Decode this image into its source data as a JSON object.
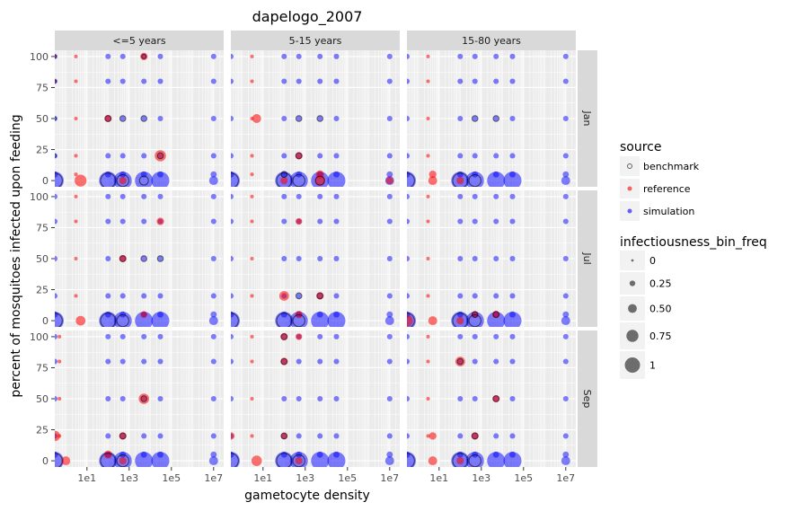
{
  "chart_data": {
    "type": "scatter",
    "title": "dapelogo_2007",
    "xlabel": "gametocyte density",
    "ylabel": "percent of mosquitoes infected upon feeding",
    "x_scale": "log10",
    "xlim": [
      0.3,
      30000000
    ],
    "ylim": [
      -5,
      105
    ],
    "x_ticks": [
      10,
      1000,
      100000,
      10000000
    ],
    "x_tick_labels": [
      "1e1",
      "1e3",
      "1e5",
      "1e7"
    ],
    "y_ticks": [
      0,
      25,
      50,
      75,
      100
    ],
    "y_tick_labels": [
      "0",
      "25",
      "50",
      "75",
      "100"
    ],
    "grid": true,
    "facet_columns": [
      "<=5 years",
      "5-15 years",
      "15-80 years"
    ],
    "facet_rows": [
      "Jan",
      "Jul",
      "Sep"
    ],
    "colors": {
      "benchmark": "#000000",
      "reference": "#ff0000",
      "simulation": "#0000ff"
    },
    "legend_color": {
      "title": "source",
      "entries": [
        "benchmark",
        "reference",
        "simulation"
      ]
    },
    "legend_size": {
      "title": "infectiousness_bin_freq",
      "entries": [
        "0",
        "0.25",
        "0.50",
        "0.75",
        "1"
      ],
      "values": [
        0,
        0.25,
        0.5,
        0.75,
        1
      ]
    },
    "simulation_x": [
      0.3,
      100,
      500,
      5000,
      30000,
      10000000
    ],
    "simulation_y": [
      0,
      5,
      20,
      50,
      80,
      100
    ],
    "simulation_size_by_y": [
      1.0,
      0.1,
      0.05,
      0.05,
      0.05,
      0.05
    ],
    "simulation_size_by_x": [
      1.0,
      1.0,
      1.0,
      1.0,
      1.0,
      0.4
    ],
    "panels": [
      {
        "col": 0,
        "row": 0,
        "reference": [
          [
            0.3,
            100,
            0.05
          ],
          [
            0.3,
            80,
            0.05
          ],
          [
            3,
            100,
            0.05
          ],
          [
            3,
            80,
            0.05
          ],
          [
            3,
            50,
            0.05
          ],
          [
            3,
            20,
            0.05
          ],
          [
            3,
            5,
            0.05
          ],
          [
            5,
            0,
            0.6
          ],
          [
            100,
            50,
            0.3
          ],
          [
            5000,
            100,
            0.3
          ],
          [
            30000,
            20,
            0.55
          ],
          [
            500,
            0,
            0.3
          ]
        ],
        "benchmark": [
          [
            0.3,
            100,
            0
          ],
          [
            0.3,
            80,
            0
          ],
          [
            0.3,
            50,
            0
          ],
          [
            0.3,
            20,
            0
          ],
          [
            0.3,
            0,
            0.8
          ],
          [
            100,
            50,
            0.2
          ],
          [
            5000,
            100,
            0.1
          ],
          [
            30000,
            20,
            0.2
          ],
          [
            500,
            50,
            0.2
          ],
          [
            5000,
            50,
            0.2
          ],
          [
            100,
            0,
            0.8
          ],
          [
            500,
            0,
            0.6
          ],
          [
            5000,
            0,
            0.4
          ]
        ]
      },
      {
        "col": 1,
        "row": 0,
        "reference": [
          [
            3,
            100,
            0.05
          ],
          [
            3,
            80,
            0.05
          ],
          [
            3,
            50,
            0.05
          ],
          [
            3,
            20,
            0.05
          ],
          [
            3,
            5,
            0.05
          ],
          [
            5,
            50,
            0.4
          ],
          [
            100,
            0,
            0.3
          ],
          [
            500,
            20,
            0.3
          ],
          [
            5000,
            5,
            0.35
          ],
          [
            5000,
            0,
            0.5
          ],
          [
            10000000,
            0,
            0.3
          ]
        ],
        "benchmark": [
          [
            0.3,
            0,
            0.8
          ],
          [
            100,
            5,
            0.2
          ],
          [
            500,
            20,
            0.2
          ],
          [
            500,
            50,
            0.2
          ],
          [
            5000,
            50,
            0.2
          ],
          [
            100,
            0,
            0.8
          ],
          [
            500,
            0,
            0.6
          ],
          [
            5000,
            0,
            0.4
          ]
        ]
      },
      {
        "col": 2,
        "row": 0,
        "reference": [
          [
            3,
            100,
            0.05
          ],
          [
            3,
            80,
            0.05
          ],
          [
            3,
            50,
            0.05
          ],
          [
            3,
            20,
            0.05
          ],
          [
            5,
            0,
            0.4
          ],
          [
            5,
            5,
            0.3
          ],
          [
            100,
            0,
            0.3
          ]
        ],
        "benchmark": [
          [
            0.3,
            0,
            0.8
          ],
          [
            100,
            0,
            0.8
          ],
          [
            500,
            0,
            0.6
          ],
          [
            500,
            50,
            0.2
          ],
          [
            5000,
            50,
            0.2
          ]
        ]
      },
      {
        "col": 0,
        "row": 1,
        "reference": [
          [
            3,
            100,
            0.05
          ],
          [
            3,
            80,
            0.05
          ],
          [
            3,
            50,
            0.05
          ],
          [
            3,
            20,
            0.05
          ],
          [
            5,
            0,
            0.45
          ],
          [
            500,
            50,
            0.3
          ],
          [
            5000,
            5,
            0.25
          ],
          [
            30000,
            80,
            0.3
          ]
        ],
        "benchmark": [
          [
            0.3,
            0,
            0.8
          ],
          [
            100,
            0,
            0.8
          ],
          [
            500,
            0,
            0.6
          ],
          [
            500,
            50,
            0.2
          ],
          [
            5000,
            50,
            0.2
          ],
          [
            30000,
            50,
            0.2
          ]
        ]
      },
      {
        "col": 1,
        "row": 1,
        "reference": [
          [
            3,
            100,
            0.05
          ],
          [
            3,
            80,
            0.05
          ],
          [
            3,
            50,
            0.05
          ],
          [
            3,
            20,
            0.05
          ],
          [
            100,
            20,
            0.45
          ],
          [
            500,
            80,
            0.25
          ],
          [
            500,
            5,
            0.3
          ],
          [
            5000,
            20,
            0.3
          ]
        ],
        "benchmark": [
          [
            0.3,
            0,
            0.8
          ],
          [
            100,
            0,
            0.8
          ],
          [
            500,
            0,
            0.6
          ],
          [
            500,
            20,
            0.2
          ],
          [
            5000,
            20,
            0.2
          ]
        ]
      },
      {
        "col": 2,
        "row": 1,
        "reference": [
          [
            0.3,
            0,
            0.6
          ],
          [
            3,
            100,
            0.05
          ],
          [
            3,
            80,
            0.05
          ],
          [
            3,
            50,
            0.05
          ],
          [
            3,
            20,
            0.05
          ],
          [
            5,
            0,
            0.4
          ],
          [
            100,
            0,
            0.3
          ],
          [
            500,
            5,
            0.25
          ],
          [
            5000,
            5,
            0.3
          ]
        ],
        "benchmark": [
          [
            0.3,
            0,
            0.8
          ],
          [
            100,
            0,
            0.8
          ],
          [
            500,
            0,
            0.6
          ],
          [
            500,
            5,
            0.2
          ],
          [
            5000,
            5,
            0.2
          ]
        ]
      },
      {
        "col": 0,
        "row": 2,
        "reference": [
          [
            0.3,
            20,
            0.5
          ],
          [
            0.5,
            100,
            0.05
          ],
          [
            0.5,
            80,
            0.05
          ],
          [
            0.5,
            50,
            0.05
          ],
          [
            0.5,
            20,
            0.05
          ],
          [
            1,
            0,
            0.4
          ],
          [
            100,
            5,
            0.35
          ],
          [
            500,
            20,
            0.3
          ],
          [
            500,
            0,
            0.3
          ],
          [
            5000,
            50,
            0.5
          ]
        ],
        "benchmark": [
          [
            0.3,
            0,
            0.8
          ],
          [
            100,
            0,
            0.8
          ],
          [
            500,
            0,
            0.6
          ],
          [
            500,
            20,
            0.2
          ],
          [
            5000,
            50,
            0.2
          ]
        ]
      },
      {
        "col": 1,
        "row": 2,
        "reference": [
          [
            0.3,
            20,
            0.3
          ],
          [
            3,
            100,
            0.05
          ],
          [
            3,
            80,
            0.05
          ],
          [
            3,
            50,
            0.05
          ],
          [
            3,
            20,
            0.05
          ],
          [
            5,
            0,
            0.5
          ],
          [
            100,
            100,
            0.3
          ],
          [
            100,
            80,
            0.3
          ],
          [
            500,
            0,
            0.3
          ],
          [
            500,
            100,
            0.25
          ],
          [
            100,
            20,
            0.25
          ]
        ],
        "benchmark": [
          [
            0.3,
            0,
            0.8
          ],
          [
            100,
            0,
            0.8
          ],
          [
            500,
            0,
            0.6
          ],
          [
            100,
            100,
            0.2
          ],
          [
            100,
            80,
            0.2
          ],
          [
            100,
            20,
            0.2
          ]
        ]
      },
      {
        "col": 2,
        "row": 2,
        "reference": [
          [
            3,
            100,
            0.05
          ],
          [
            3,
            80,
            0.05
          ],
          [
            3,
            50,
            0.05
          ],
          [
            3,
            20,
            0.05
          ],
          [
            5,
            0,
            0.4
          ],
          [
            5,
            20,
            0.3
          ],
          [
            100,
            80,
            0.45
          ],
          [
            500,
            20,
            0.3
          ],
          [
            5000,
            50,
            0.3
          ],
          [
            100,
            0,
            0.3
          ]
        ],
        "benchmark": [
          [
            0.3,
            0,
            0.8
          ],
          [
            100,
            0,
            0.8
          ],
          [
            500,
            0,
            0.6
          ],
          [
            100,
            80,
            0.2
          ],
          [
            500,
            20,
            0.2
          ],
          [
            5000,
            50,
            0.2
          ]
        ]
      }
    ]
  }
}
